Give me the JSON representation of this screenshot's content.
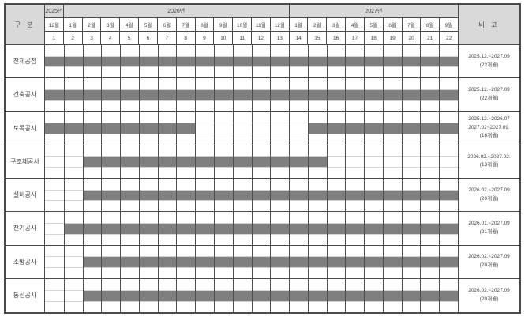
{
  "table": {
    "corner_label": "구 분",
    "remarks_label": "비 고",
    "years": [
      {
        "label": "2025년",
        "span": 1
      },
      {
        "label": "2026년",
        "span": 12
      },
      {
        "label": "2027년",
        "span": 9
      }
    ],
    "months": [
      "12월",
      "1월",
      "2월",
      "3월",
      "4월",
      "5월",
      "6월",
      "7월",
      "8월",
      "9월",
      "10월",
      "11월",
      "12월",
      "1월",
      "2월",
      "3월",
      "4월",
      "5월",
      "6월",
      "7월",
      "8월",
      "9월"
    ],
    "month_numbers": [
      "1",
      "2",
      "3",
      "4",
      "5",
      "6",
      "7",
      "8",
      "9",
      "10",
      "11",
      "12",
      "13",
      "14",
      "15",
      "16",
      "17",
      "18",
      "19",
      "20",
      "21",
      "22"
    ],
    "rows": [
      {
        "label": "전체공정",
        "segments": [
          {
            "start": 1,
            "end": 22
          }
        ],
        "remarks": [
          "2025.12.~2027.09",
          "(22개월)"
        ]
      },
      {
        "label": "건축공사",
        "segments": [
          {
            "start": 1,
            "end": 22
          }
        ],
        "remarks": [
          "2025.12.~2027.09",
          "(22개월)"
        ]
      },
      {
        "label": "토목공사",
        "segments": [
          {
            "start": 1,
            "end": 8
          },
          {
            "start": 15,
            "end": 22
          }
        ],
        "remarks": [
          "2025.12.~2026.07",
          "2027.02~2027.09.",
          "(16개월)"
        ]
      },
      {
        "label": "구조체공사",
        "segments": [
          {
            "start": 3,
            "end": 15
          }
        ],
        "remarks": [
          "2026.02.~2027.02.",
          "(13개월)"
        ]
      },
      {
        "label": "설비공사",
        "segments": [
          {
            "start": 3,
            "end": 22
          }
        ],
        "remarks": [
          "2026.02.~2027.09",
          "(20개월)"
        ]
      },
      {
        "label": "전기공사",
        "segments": [
          {
            "start": 2,
            "end": 22
          }
        ],
        "remarks": [
          "2026.01.~2027.09",
          "(21개월)"
        ]
      },
      {
        "label": "소방공사",
        "segments": [
          {
            "start": 3,
            "end": 22
          }
        ],
        "remarks": [
          "2026.02.~2027.09",
          "(20개월)"
        ]
      },
      {
        "label": "통신공사",
        "segments": [
          {
            "start": 3,
            "end": 22
          }
        ],
        "remarks": [
          "2026.02.~2027.09",
          "(20개월)"
        ]
      }
    ]
  },
  "colors": {
    "header_bg": "#d9d9d9",
    "bar": "#7f7f7f",
    "grid_dark": "#4a4a4a",
    "grid_light": "#d4d4d4",
    "text": "#404040"
  },
  "chart_data": {
    "type": "bar",
    "subtype": "gantt-schedule",
    "title": "",
    "x_axis": {
      "unit": "month",
      "years": [
        "2025년",
        "2026년",
        "2027년"
      ],
      "month_labels": [
        "12월",
        "1월",
        "2월",
        "3월",
        "4월",
        "5월",
        "6월",
        "7월",
        "8월",
        "9월",
        "10월",
        "11월",
        "12월",
        "1월",
        "2월",
        "3월",
        "4월",
        "5월",
        "6월",
        "7월",
        "8월",
        "9월"
      ],
      "month_index_range": [
        1,
        22
      ]
    },
    "tasks": [
      {
        "name": "전체공정",
        "bars_month_index": [
          [
            1,
            22
          ]
        ],
        "period": "2025.12.~2027.09",
        "duration": "(22개월)"
      },
      {
        "name": "건축공사",
        "bars_month_index": [
          [
            1,
            22
          ]
        ],
        "period": "2025.12.~2027.09",
        "duration": "(22개월)"
      },
      {
        "name": "토목공사",
        "bars_month_index": [
          [
            1,
            8
          ],
          [
            15,
            22
          ]
        ],
        "period": "2025.12.~2026.07, 2027.02~2027.09.",
        "duration": "(16개월)"
      },
      {
        "name": "구조체공사",
        "bars_month_index": [
          [
            3,
            15
          ]
        ],
        "period": "2026.02.~2027.02.",
        "duration": "(13개월)"
      },
      {
        "name": "설비공사",
        "bars_month_index": [
          [
            3,
            22
          ]
        ],
        "period": "2026.02.~2027.09",
        "duration": "(20개월)"
      },
      {
        "name": "전기공사",
        "bars_month_index": [
          [
            2,
            22
          ]
        ],
        "period": "2026.01.~2027.09",
        "duration": "(21개월)"
      },
      {
        "name": "소방공사",
        "bars_month_index": [
          [
            3,
            22
          ]
        ],
        "period": "2026.02.~2027.09",
        "duration": "(20개월)"
      },
      {
        "name": "통신공사",
        "bars_month_index": [
          [
            3,
            22
          ]
        ],
        "period": "2026.02.~2027.09",
        "duration": "(20개월)"
      }
    ],
    "legend": "none",
    "grid": "on"
  }
}
